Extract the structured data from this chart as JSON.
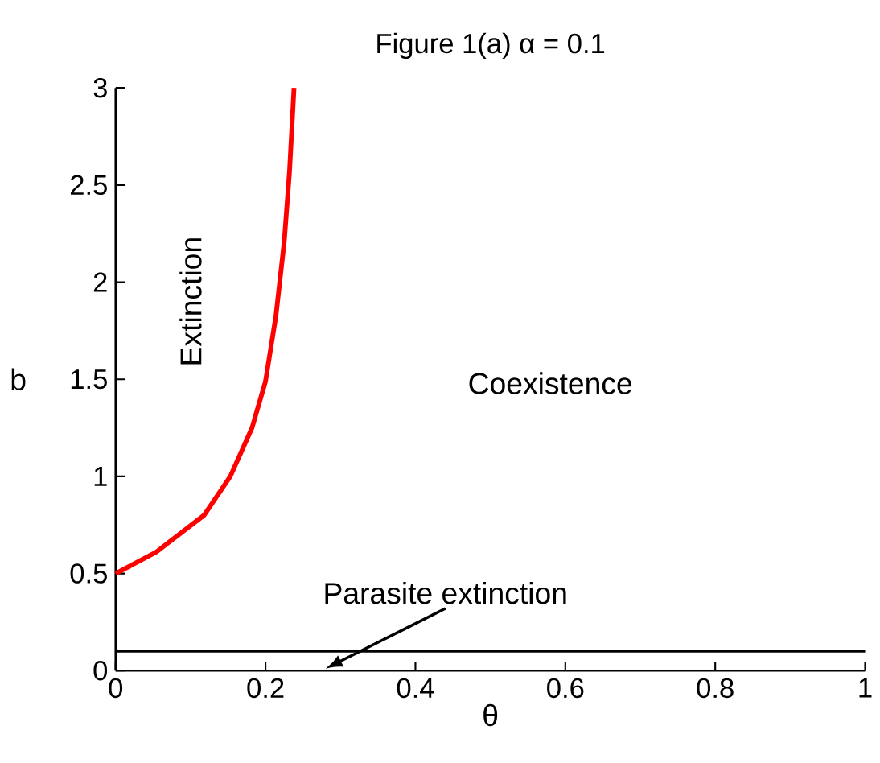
{
  "chart_data": {
    "type": "line",
    "title": "Figure 1(a) α = 0.1",
    "xlabel": "θ",
    "ylabel": "b",
    "xlim": [
      0,
      1
    ],
    "ylim": [
      0,
      3
    ],
    "xticks": [
      0,
      0.2,
      0.4,
      0.6,
      0.8,
      1
    ],
    "yticks": [
      0,
      0.5,
      1,
      1.5,
      2,
      2.5,
      3
    ],
    "series": [
      {
        "color": "#ff0000",
        "x": [
          0,
          0.054,
          0.118,
          0.153,
          0.182,
          0.2,
          0.214,
          0.225,
          0.232,
          0.238
        ],
        "values": [
          0.5,
          0.61,
          0.8,
          1.0,
          1.25,
          1.49,
          1.83,
          2.21,
          2.57,
          3.0
        ]
      }
    ],
    "ref_lines": [
      {
        "axis": "y",
        "value": 0.1,
        "color": "#000000"
      }
    ],
    "annotations": [
      "Extinction",
      "Coexistence",
      "Parasite extinction"
    ]
  }
}
